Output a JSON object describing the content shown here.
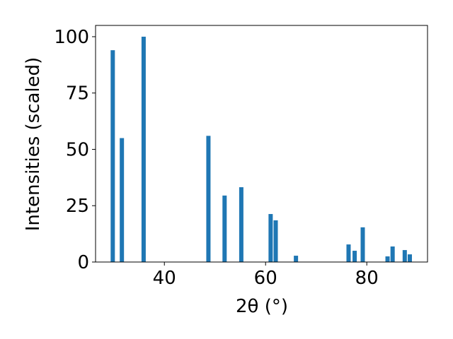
{
  "chart_data": {
    "type": "bar",
    "xlabel": "2θ (°)",
    "ylabel": "Intensities (scaled)",
    "x": [
      29.8,
      31.6,
      35.9,
      48.7,
      51.9,
      55.2,
      61.0,
      62.0,
      66.0,
      76.4,
      77.6,
      79.2,
      84.1,
      85.1,
      87.5,
      88.5
    ],
    "values": [
      94,
      55,
      100,
      56,
      29.5,
      33.2,
      21.3,
      18.5,
      2.8,
      7.8,
      5,
      15.4,
      2.5,
      6.9,
      5.3,
      3.4
    ],
    "color": "#1f77b4",
    "xlim": [
      26.4,
      92.0
    ],
    "xticks": [
      40,
      60,
      80
    ],
    "ylim": [
      0,
      105
    ],
    "yticks": [
      0,
      25,
      50,
      75,
      100
    ]
  }
}
